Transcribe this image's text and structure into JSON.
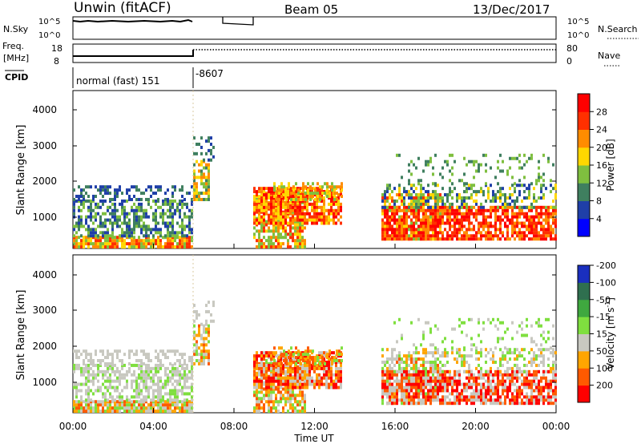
{
  "header": {
    "title": "Unwin (fitACF)",
    "beam": "Beam 05",
    "date": "13/Dec/2017"
  },
  "info_panels": {
    "nsky": {
      "label": "N.Sky",
      "ticks": [
        "10^5",
        "10^0"
      ],
      "right_ticks": [
        "10^5",
        "10^0"
      ],
      "right_label": "N.Search"
    },
    "freq": {
      "label_line1": "Freq.",
      "label_line2": "[MHz]",
      "ticks": [
        "18",
        "8"
      ],
      "right_ticks": [
        "80",
        "0"
      ],
      "right_label": "Nave"
    },
    "cpid": {
      "label": "CPID",
      "mode_text": "normal (fast) 151",
      "mode_text_2": "-8607"
    }
  },
  "colors": {
    "power_scale": [
      "#0000ff",
      "#1f3fa8",
      "#3f7f5f",
      "#7fbf3f",
      "#ffd700",
      "#ff8c00",
      "#ff3000",
      "#ff0000"
    ],
    "velocity_scale": [
      "#1a2fbf",
      "#2f6f4f",
      "#3fa83f",
      "#7fdf3f",
      "#c8c8c0",
      "#ffa500",
      "#ff5a00",
      "#ff0000"
    ]
  },
  "chart_data": [
    {
      "type": "heatmap",
      "panel": "power",
      "ylabel": "Slant Range [km]",
      "ylim": [
        180,
        4600
      ],
      "yticks": [
        "1000",
        "2000",
        "3000",
        "4000"
      ],
      "colorbar": {
        "label": "Power [dB]",
        "ticks": [
          "4",
          "8",
          "12",
          "16",
          "20",
          "24",
          "28"
        ],
        "range": [
          0,
          32
        ]
      }
    },
    {
      "type": "heatmap",
      "panel": "velocity",
      "ylabel": "Slant Range [km]",
      "ylim": [
        180,
        4600
      ],
      "yticks": [
        "1000",
        "2000",
        "3000",
        "4000"
      ],
      "xlabel": "Time UT",
      "xticks": [
        "00:00",
        "04:00",
        "08:00",
        "12:00",
        "16:00",
        "20:00",
        "00:00"
      ],
      "colorbar": {
        "label": "Velocity [m s",
        "label_exp": "-1",
        "label_end": "]",
        "ticks": [
          "200",
          "100",
          "50",
          "15",
          "-15",
          "-50",
          "-100",
          "-200"
        ]
      }
    }
  ]
}
